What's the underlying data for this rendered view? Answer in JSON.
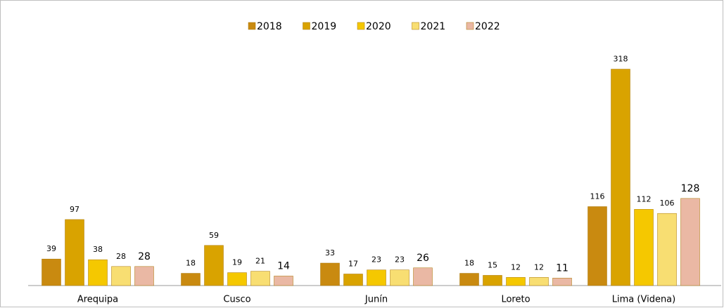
{
  "chart_data": {
    "type": "bar",
    "categories": [
      "Arequipa",
      "Cusco",
      "Junín",
      "Loreto",
      "Lima (Videna)"
    ],
    "series": [
      {
        "name": "2018",
        "color": "#c98a10",
        "values": [
          39,
          18,
          33,
          18,
          116
        ]
      },
      {
        "name": "2019",
        "color": "#d9a300",
        "values": [
          97,
          59,
          17,
          15,
          318
        ]
      },
      {
        "name": "2020",
        "color": "#f5c800",
        "values": [
          38,
          19,
          23,
          12,
          112
        ]
      },
      {
        "name": "2021",
        "color": "#f8de72",
        "values": [
          28,
          21,
          23,
          12,
          106
        ]
      },
      {
        "name": "2022",
        "color": "#eab8a4",
        "values": [
          28,
          14,
          26,
          11,
          128
        ]
      }
    ],
    "legend": "top"
  }
}
